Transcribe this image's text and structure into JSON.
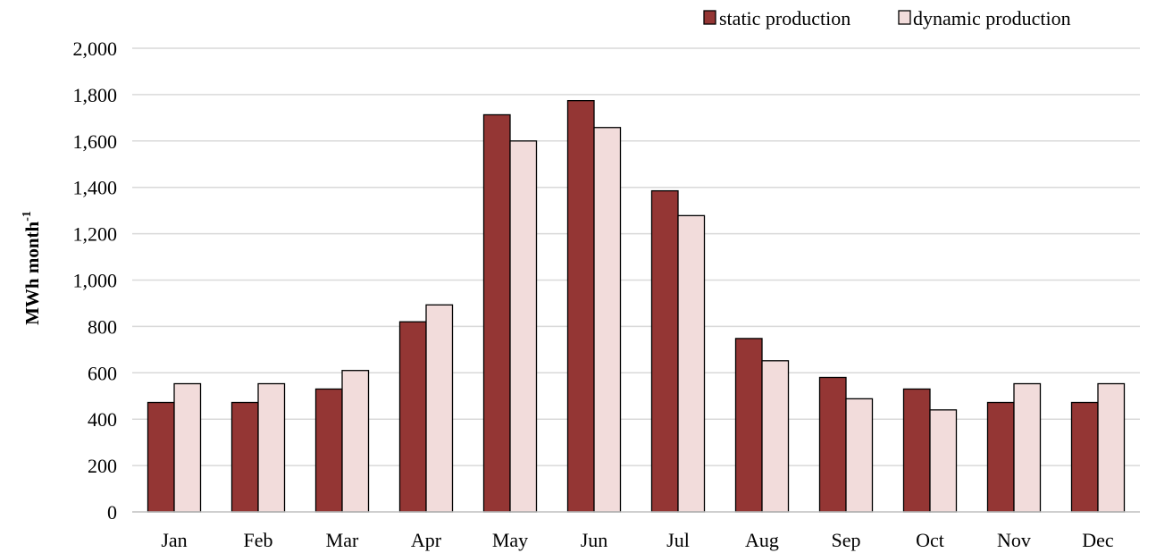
{
  "chart_data": {
    "type": "bar",
    "title": "",
    "xlabel": "",
    "ylabel": "MWh month",
    "ylabel_superscript": "-1",
    "categories": [
      "Jan",
      "Feb",
      "Mar",
      "Apr",
      "May",
      "Jun",
      "Jul",
      "Aug",
      "Sep",
      "Oct",
      "Nov",
      "Dec"
    ],
    "series": [
      {
        "name": "static production",
        "color": "#943634",
        "values": [
          472,
          472,
          530,
          820,
          1713,
          1774,
          1385,
          748,
          580,
          530,
          472,
          472
        ]
      },
      {
        "name": "dynamic production",
        "color": "#f2dcdb",
        "values": [
          553,
          553,
          610,
          893,
          1600,
          1658,
          1278,
          652,
          488,
          440,
          553,
          553
        ]
      }
    ],
    "ylim": [
      0,
      2000
    ],
    "yticks": [
      "0",
      "200",
      "400",
      "600",
      "800",
      "1,000",
      "1,200",
      "1,400",
      "1,600",
      "1,800",
      "2,000"
    ],
    "ytick_values": [
      0,
      200,
      400,
      600,
      800,
      1000,
      1200,
      1400,
      1600,
      1800,
      2000
    ],
    "grid": true,
    "legend_position": "top-right"
  }
}
